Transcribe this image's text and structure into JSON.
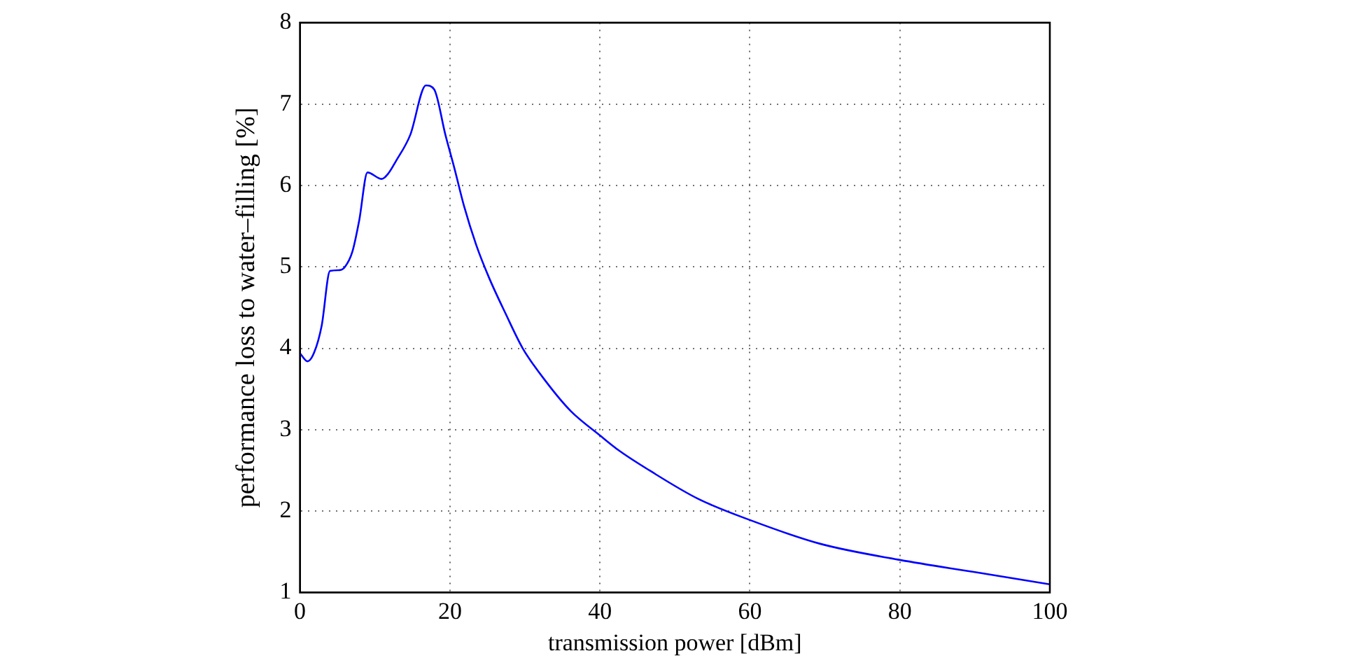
{
  "chart_data": {
    "type": "line",
    "xlabel": "transmission power [dBm]",
    "ylabel": "performance loss to water–filling [%]",
    "x": [
      0,
      1,
      1.9,
      2.9,
      4,
      5.3,
      6,
      7,
      7.9,
      9,
      10.9,
      11.8,
      12.8,
      14.7,
      16.8,
      17.9,
      19.4,
      20.6,
      21.9,
      23.5,
      25.2,
      27.4,
      29.7,
      32.9,
      36.1,
      40,
      42.6,
      46.6,
      53.1,
      60,
      69.3,
      80,
      90,
      100
    ],
    "series": [
      {
        "color": "#0000ff",
        "values": [
          3.94,
          3.84,
          3.95,
          4.28,
          4.95,
          4.96,
          5.0,
          5.19,
          5.57,
          6.16,
          6.08,
          6.15,
          6.3,
          6.62,
          7.23,
          7.18,
          6.62,
          6.21,
          5.74,
          5.27,
          4.87,
          4.43,
          4.0,
          3.58,
          3.23,
          2.93,
          2.74,
          2.5,
          2.15,
          1.89,
          1.6,
          1.4,
          1.25,
          1.1
        ]
      }
    ],
    "xlim": [
      0,
      100
    ],
    "xticks": [
      0,
      20,
      40,
      60,
      80,
      100
    ],
    "ylim": [
      1,
      8
    ],
    "yticks": [
      1,
      2,
      3,
      4,
      5,
      6,
      7,
      8
    ],
    "grid": true,
    "marker": "none",
    "line_style": "solid",
    "legend": false
  }
}
